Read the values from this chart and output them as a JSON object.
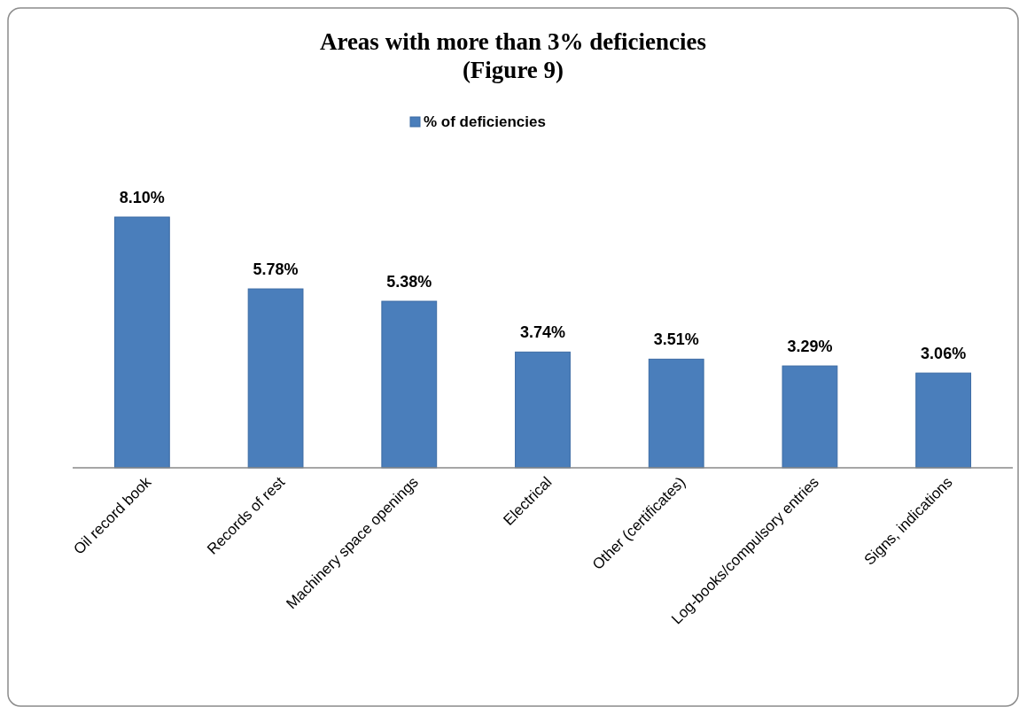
{
  "chart_data": {
    "type": "bar",
    "title": "Areas with more than 3% deficiencies\n(Figure 9)",
    "categories": [
      "Oil record book",
      "Records of rest",
      "Machinery space openings",
      "Electrical",
      "Other (certificates)",
      "Log-books/compulsory entries",
      "Signs, indications"
    ],
    "series": [
      {
        "name": "% of deficiencies",
        "color": "#4a7ebb",
        "values": [
          8.1,
          5.78,
          5.38,
          3.74,
          3.51,
          3.29,
          3.06
        ],
        "value_labels": [
          "8.10%",
          "5.78%",
          "5.38%",
          "3.74%",
          "3.51%",
          "3.29%",
          "3.06%"
        ]
      }
    ],
    "legend": "top"
  }
}
